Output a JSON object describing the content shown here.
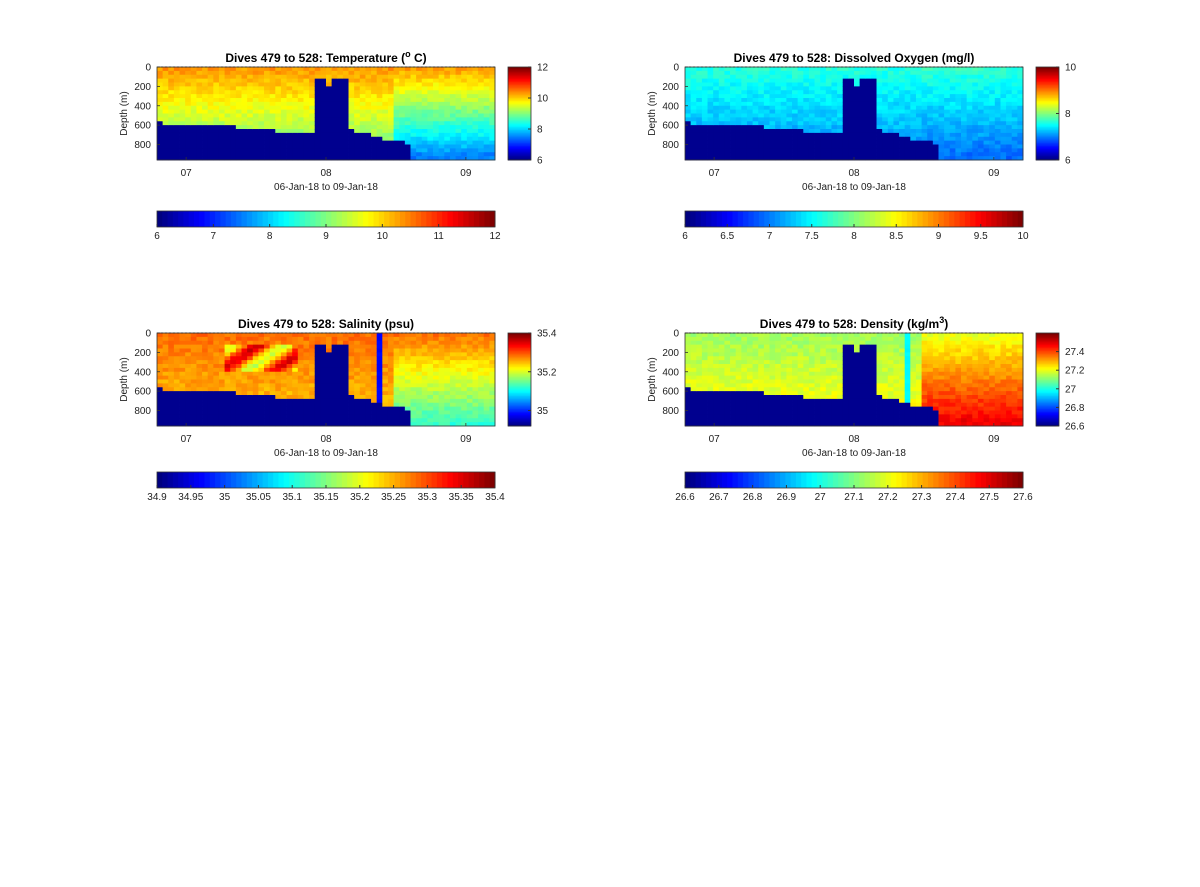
{
  "figure": {
    "xlabel": "06-Jan-18 to 09-Jan-18",
    "ylabel": "Depth (m)"
  },
  "chart_data": [
    {
      "type": "heatmap",
      "id": "temperature",
      "title": "Dives 479 to 528: Temperature (",
      "title_sup": "o",
      "title_tail": " C)",
      "xlabel": "06-Jan-18 to 09-Jan-18",
      "ylabel": "Depth (m)",
      "x_range": [
        "2018-01-06T19:00",
        "2018-01-09T05:00"
      ],
      "x_ticks": [
        "07",
        "08",
        "09"
      ],
      "y_range": [
        0,
        960
      ],
      "y_reversed": true,
      "y_ticks": [
        0,
        200,
        400,
        600,
        800
      ],
      "colormap": "jet",
      "clim": [
        6,
        12
      ],
      "side_colorbar_ticks": [
        6,
        8,
        10,
        12
      ],
      "bottom_colorbar_ticks": [
        6,
        7,
        8,
        9,
        10,
        11,
        12
      ],
      "no_data_color": "#00008f",
      "surface_value": 10.4,
      "deep_value": 8.7,
      "late_surface_value": 10.4,
      "late_deep_value": 7.4,
      "gap_surface_value": 10.0,
      "gap_column": null,
      "feature": "warm"
    },
    {
      "type": "heatmap",
      "id": "oxygen",
      "title": "Dives 479 to 528: Dissolved Oxygen (mg/l)",
      "title_sup": "",
      "title_tail": "",
      "xlabel": "06-Jan-18 to 09-Jan-18",
      "ylabel": "Depth (m)",
      "x_range": [
        "2018-01-06T19:00",
        "2018-01-09T05:00"
      ],
      "x_ticks": [
        "07",
        "08",
        "09"
      ],
      "y_range": [
        0,
        960
      ],
      "y_reversed": true,
      "y_ticks": [
        0,
        200,
        400,
        600,
        800
      ],
      "colormap": "jet",
      "clim": [
        6,
        10
      ],
      "side_colorbar_ticks": [
        6,
        8,
        10
      ],
      "bottom_colorbar_ticks": [
        6,
        6.5,
        7,
        7.5,
        8,
        8.5,
        9,
        9.5,
        10
      ],
      "no_data_color": "#00008f",
      "surface_value": 7.65,
      "deep_value": 7.0,
      "late_surface_value": 7.7,
      "late_deep_value": 6.9,
      "gap_surface_value": 7.6,
      "gap_column": null,
      "feature": "none"
    },
    {
      "type": "heatmap",
      "id": "salinity",
      "title": "Dives 479 to 528: Salinity (psu)",
      "title_sup": "",
      "title_tail": "",
      "xlabel": "06-Jan-18 to 09-Jan-18",
      "ylabel": "Depth (m)",
      "x_range": [
        "2018-01-06T19:00",
        "2018-01-09T05:00"
      ],
      "x_ticks": [
        "07",
        "08",
        "09"
      ],
      "y_range": [
        0,
        960
      ],
      "y_reversed": true,
      "y_ticks": [
        0,
        200,
        400,
        600,
        800
      ],
      "colormap": "jet",
      "clim": [
        34.92,
        35.4
      ],
      "side_colorbar_ticks": [
        35,
        35.2,
        35.4
      ],
      "bottom_colorbar_ticks": [
        34.9,
        34.95,
        35,
        35.05,
        35.1,
        35.15,
        35.2,
        35.25,
        35.3,
        35.35,
        35.4
      ],
      "no_data_color": "#00008f",
      "surface_value": 35.29,
      "deep_value": 35.24,
      "late_surface_value": 35.29,
      "late_deep_value": 35.12,
      "gap_surface_value": 35.24,
      "gap_column": 34.98,
      "feature": "salty"
    },
    {
      "type": "heatmap",
      "id": "density",
      "title": "Dives 479 to 528: Density (kg/m",
      "title_sup": "3",
      "title_tail": ")",
      "xlabel": "06-Jan-18 to 09-Jan-18",
      "ylabel": "Depth (m)",
      "x_range": [
        "2018-01-06T19:00",
        "2018-01-09T05:00"
      ],
      "x_ticks": [
        "07",
        "08",
        "09"
      ],
      "y_range": [
        0,
        960
      ],
      "y_reversed": true,
      "y_ticks": [
        0,
        200,
        400,
        600,
        800
      ],
      "colormap": "jet",
      "clim": [
        26.6,
        27.6
      ],
      "side_colorbar_ticks": [
        26.6,
        26.8,
        27,
        27.2,
        27.4
      ],
      "bottom_colorbar_ticks": [
        26.6,
        26.7,
        26.8,
        26.9,
        27,
        27.1,
        27.2,
        27.3,
        27.4,
        27.5,
        27.6
      ],
      "no_data_color": "#00008f",
      "surface_value": 27.13,
      "deep_value": 27.24,
      "late_surface_value": 27.2,
      "late_deep_value": 27.5,
      "gap_surface_value": 27.15,
      "gap_column": 26.97,
      "feature": "none"
    }
  ]
}
